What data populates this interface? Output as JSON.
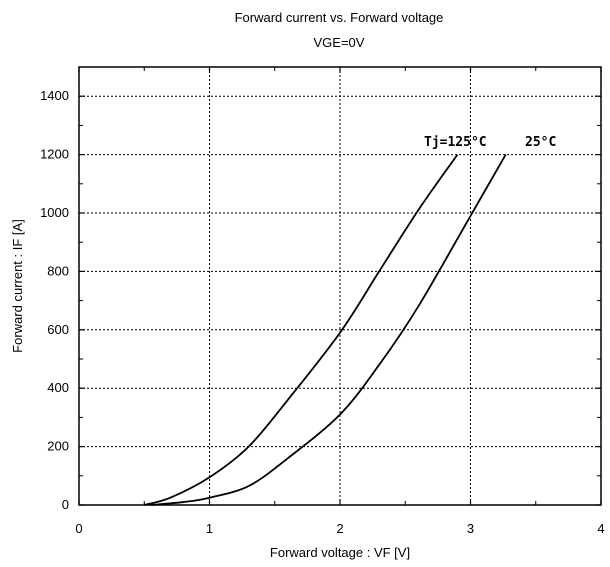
{
  "chart_data": {
    "type": "line",
    "title": "Forward current vs.  Forward voltage",
    "subtitle": "VGE=0V",
    "xlabel": "Forward voltage  :  VF [V]",
    "ylabel": "Forward current  :  IF [A]",
    "xlim": [
      0,
      4
    ],
    "ylim": [
      0,
      1500
    ],
    "xticks": [
      0,
      1,
      2,
      3,
      4
    ],
    "yticks": [
      0,
      200,
      400,
      600,
      800,
      1000,
      1200,
      1400
    ],
    "grid": true,
    "series": [
      {
        "name": "Tj=125°C",
        "label": "Tj=125°C",
        "x": [
          0.5,
          0.7,
          1.0,
          1.3,
          1.6,
          2.0,
          2.3,
          2.6,
          2.9
        ],
        "y": [
          0,
          25,
          95,
          200,
          360,
          590,
          800,
          1010,
          1200
        ]
      },
      {
        "name": "25°C",
        "label": "25°C",
        "x": [
          0.55,
          0.8,
          1.0,
          1.3,
          1.6,
          2.0,
          2.3,
          2.6,
          3.0,
          3.27
        ],
        "y": [
          0,
          10,
          25,
          65,
          160,
          310,
          480,
          680,
          990,
          1200
        ]
      }
    ]
  }
}
